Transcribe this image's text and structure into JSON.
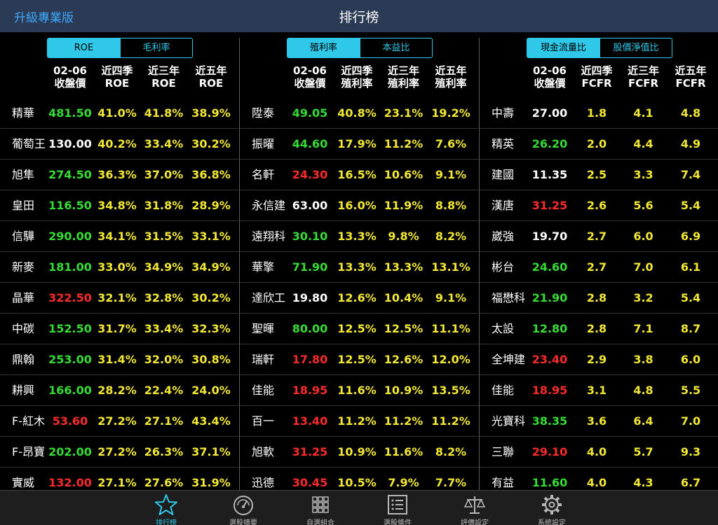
{
  "app": {
    "title": "排行榜",
    "upgrade_label": "升級專業版"
  },
  "panels": [
    {
      "tabs": [
        {
          "label": "ROE",
          "active": true
        },
        {
          "label": "毛利率",
          "active": false
        }
      ],
      "headers": [
        "02-06\n收盤價",
        "近四季\nROE",
        "近三年\nROE",
        "近五年\nROE"
      ],
      "rows": [
        {
          "name": "精華",
          "price": "481.50",
          "price_color": "green",
          "v1": "41.0%",
          "v2": "41.8%",
          "v3": "38.9%"
        },
        {
          "name": "葡萄王",
          "price": "130.00",
          "price_color": "white",
          "v1": "40.2%",
          "v2": "33.4%",
          "v3": "30.2%"
        },
        {
          "name": "旭隼",
          "price": "274.50",
          "price_color": "green",
          "v1": "36.3%",
          "v2": "37.0%",
          "v3": "36.8%"
        },
        {
          "name": "皇田",
          "price": "116.50",
          "price_color": "green",
          "v1": "34.8%",
          "v2": "31.8%",
          "v3": "28.9%"
        },
        {
          "name": "信驊",
          "price": "290.00",
          "price_color": "green",
          "v1": "34.1%",
          "v2": "31.5%",
          "v3": "33.1%"
        },
        {
          "name": "新麥",
          "price": "181.00",
          "price_color": "green",
          "v1": "33.0%",
          "v2": "34.9%",
          "v3": "34.9%"
        },
        {
          "name": "晶華",
          "price": "322.50",
          "price_color": "red",
          "v1": "32.1%",
          "v2": "32.8%",
          "v3": "30.2%"
        },
        {
          "name": "中碳",
          "price": "152.50",
          "price_color": "green",
          "v1": "31.7%",
          "v2": "33.4%",
          "v3": "32.3%"
        },
        {
          "name": "鼎翰",
          "price": "253.00",
          "price_color": "green",
          "v1": "31.4%",
          "v2": "32.0%",
          "v3": "30.8%"
        },
        {
          "name": "耕興",
          "price": "166.00",
          "price_color": "green",
          "v1": "28.2%",
          "v2": "22.4%",
          "v3": "24.0%"
        },
        {
          "name": "F-紅木",
          "price": "53.60",
          "price_color": "red",
          "v1": "27.2%",
          "v2": "27.1%",
          "v3": "43.4%"
        },
        {
          "name": "F-昂寶",
          "price": "202.00",
          "price_color": "green",
          "v1": "27.2%",
          "v2": "26.3%",
          "v3": "37.1%"
        },
        {
          "name": "實威",
          "price": "132.00",
          "price_color": "red",
          "v1": "27.1%",
          "v2": "27.6%",
          "v3": "31.9%"
        }
      ]
    },
    {
      "tabs": [
        {
          "label": "殖利率",
          "active": true
        },
        {
          "label": "本益比",
          "active": false
        }
      ],
      "headers": [
        "02-06\n收盤價",
        "近四季\n殖利率",
        "近三年\n殖利率",
        "近五年\n殖利率"
      ],
      "rows": [
        {
          "name": "陞泰",
          "price": "49.05",
          "price_color": "green",
          "v1": "40.8%",
          "v2": "23.1%",
          "v3": "19.2%"
        },
        {
          "name": "振曜",
          "price": "44.60",
          "price_color": "green",
          "v1": "17.9%",
          "v2": "11.2%",
          "v3": "7.6%"
        },
        {
          "name": "名軒",
          "price": "24.30",
          "price_color": "red",
          "v1": "16.5%",
          "v2": "10.6%",
          "v3": "9.1%"
        },
        {
          "name": "永信建",
          "price": "63.00",
          "price_color": "white",
          "v1": "16.0%",
          "v2": "11.9%",
          "v3": "8.8%"
        },
        {
          "name": "遠翔科",
          "price": "30.10",
          "price_color": "green",
          "v1": "13.3%",
          "v2": "9.8%",
          "v3": "8.2%"
        },
        {
          "name": "華擎",
          "price": "71.90",
          "price_color": "green",
          "v1": "13.3%",
          "v2": "13.3%",
          "v3": "13.1%"
        },
        {
          "name": "達欣工",
          "price": "19.80",
          "price_color": "white",
          "v1": "12.6%",
          "v2": "10.4%",
          "v3": "9.1%"
        },
        {
          "name": "聖暉",
          "price": "80.00",
          "price_color": "green",
          "v1": "12.5%",
          "v2": "12.5%",
          "v3": "11.1%"
        },
        {
          "name": "瑞軒",
          "price": "17.80",
          "price_color": "red",
          "v1": "12.5%",
          "v2": "12.6%",
          "v3": "12.0%"
        },
        {
          "name": "佳能",
          "price": "18.95",
          "price_color": "red",
          "v1": "11.6%",
          "v2": "10.9%",
          "v3": "13.5%"
        },
        {
          "name": "百一",
          "price": "13.40",
          "price_color": "red",
          "v1": "11.2%",
          "v2": "11.2%",
          "v3": "11.2%"
        },
        {
          "name": "旭軟",
          "price": "31.25",
          "price_color": "red",
          "v1": "10.9%",
          "v2": "11.6%",
          "v3": "8.2%"
        },
        {
          "name": "迅德",
          "price": "30.45",
          "price_color": "red",
          "v1": "10.5%",
          "v2": "7.9%",
          "v3": "7.7%"
        }
      ]
    },
    {
      "tabs": [
        {
          "label": "現金流量比",
          "active": true
        },
        {
          "label": "股價淨值比",
          "active": false
        }
      ],
      "headers": [
        "02-06\n收盤價",
        "近四季\nFCFR",
        "近三年\nFCFR",
        "近五年\nFCFR"
      ],
      "rows": [
        {
          "name": "中壽",
          "price": "27.00",
          "price_color": "white",
          "v1": "1.8",
          "v2": "4.1",
          "v3": "4.8"
        },
        {
          "name": "精英",
          "price": "26.20",
          "price_color": "green",
          "v1": "2.0",
          "v2": "4.4",
          "v3": "4.9"
        },
        {
          "name": "建國",
          "price": "11.35",
          "price_color": "white",
          "v1": "2.5",
          "v2": "3.3",
          "v3": "7.4"
        },
        {
          "name": "漢唐",
          "price": "31.25",
          "price_color": "red",
          "v1": "2.6",
          "v2": "5.6",
          "v3": "5.4"
        },
        {
          "name": "崴強",
          "price": "19.70",
          "price_color": "white",
          "v1": "2.7",
          "v2": "6.0",
          "v3": "6.9"
        },
        {
          "name": "彬台",
          "price": "24.60",
          "price_color": "green",
          "v1": "2.7",
          "v2": "7.0",
          "v3": "6.1"
        },
        {
          "name": "福懋科",
          "price": "21.90",
          "price_color": "green",
          "v1": "2.8",
          "v2": "3.2",
          "v3": "5.4"
        },
        {
          "name": "太設",
          "price": "12.80",
          "price_color": "green",
          "v1": "2.8",
          "v2": "7.1",
          "v3": "8.7"
        },
        {
          "name": "全坤建",
          "price": "23.40",
          "price_color": "red",
          "v1": "2.9",
          "v2": "3.8",
          "v3": "6.0"
        },
        {
          "name": "佳能",
          "price": "18.95",
          "price_color": "red",
          "v1": "3.1",
          "v2": "4.8",
          "v3": "5.5"
        },
        {
          "name": "光寶科",
          "price": "38.35",
          "price_color": "green",
          "v1": "3.6",
          "v2": "6.4",
          "v3": "7.0"
        },
        {
          "name": "三聯",
          "price": "29.10",
          "price_color": "red",
          "v1": "4.0",
          "v2": "5.7",
          "v3": "9.3"
        },
        {
          "name": "有益",
          "price": "11.60",
          "price_color": "green",
          "v1": "4.0",
          "v2": "4.3",
          "v3": "6.7"
        }
      ]
    }
  ],
  "tabbar": [
    {
      "label": "排行榜",
      "icon": "star-icon",
      "active": true
    },
    {
      "label": "選股摘要",
      "icon": "gauge-icon",
      "active": false
    },
    {
      "label": "自選組合",
      "icon": "grid-icon",
      "active": false
    },
    {
      "label": "選股條件",
      "icon": "list-icon",
      "active": false
    },
    {
      "label": "評價設定",
      "icon": "scale-icon",
      "active": false
    },
    {
      "label": "系統設定",
      "icon": "gear-icon",
      "active": false
    }
  ],
  "colors": {
    "accent": "#30c8e8",
    "up": "#ff2a2a",
    "down": "#34dd34",
    "value": "#f2e833",
    "topbar": "#2b3a55"
  }
}
